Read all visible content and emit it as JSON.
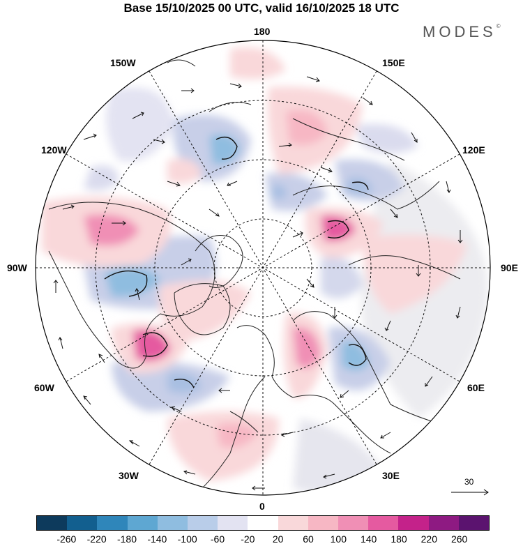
{
  "title": "Base 15/10/2025 00 UTC, valid 16/10/2025 18 UTC",
  "brand": {
    "name": "MODES",
    "mark": "©"
  },
  "longitude_labels": {
    "deg180": "180",
    "deg150w": "150W",
    "deg150e": "150E",
    "deg120w": "120W",
    "deg120e": "120E",
    "deg90w": "90W",
    "deg90e": "90E",
    "deg60w": "60W",
    "deg60e": "60E",
    "deg30w": "30W",
    "deg30e": "30E",
    "deg0": "0"
  },
  "vector_scale": "30",
  "colorbar": {
    "colors": [
      "#0d3a5c",
      "#125f8f",
      "#2f86ba",
      "#5ea7d2",
      "#8fbde0",
      "#b9cde9",
      "#e3e3f2",
      "#ffffff",
      "#f9d8da",
      "#f7b7c4",
      "#f08fb5",
      "#e55aa0",
      "#c4228a",
      "#8e1a82",
      "#5b136f"
    ],
    "tick_labels": [
      "-260",
      "-220",
      "-180",
      "-140",
      "-100",
      "-60",
      "-20",
      "20",
      "60",
      "100",
      "140",
      "180",
      "220",
      "260"
    ]
  }
}
